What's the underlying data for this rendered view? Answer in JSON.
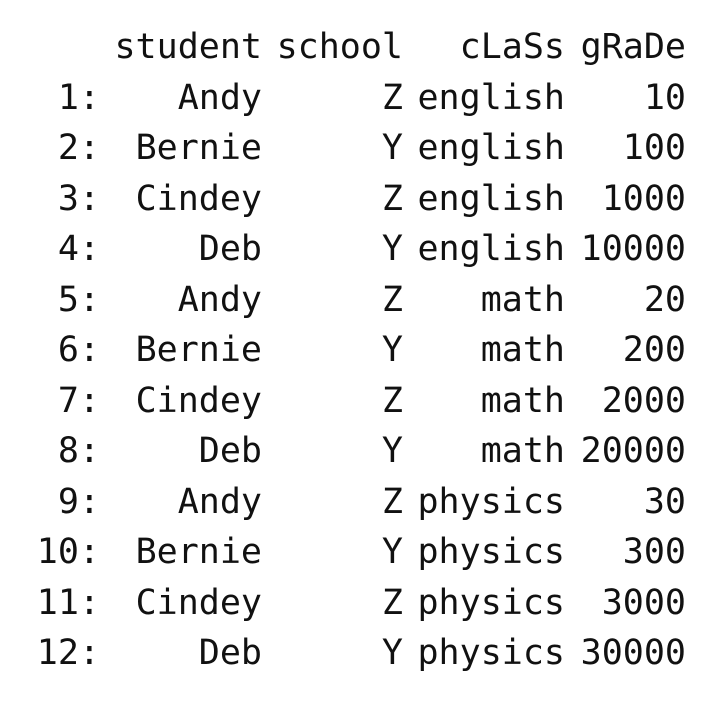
{
  "table": {
    "headers": {
      "index": "",
      "student": "student",
      "school": "school",
      "class": "cLaSs",
      "grade": "gRaDe"
    },
    "rows": [
      {
        "index": "1:",
        "student": "Andy",
        "school": "Z",
        "class": "english",
        "grade": "10"
      },
      {
        "index": "2:",
        "student": "Bernie",
        "school": "Y",
        "class": "english",
        "grade": "100"
      },
      {
        "index": "3:",
        "student": "Cindey",
        "school": "Z",
        "class": "english",
        "grade": "1000"
      },
      {
        "index": "4:",
        "student": "Deb",
        "school": "Y",
        "class": "english",
        "grade": "10000"
      },
      {
        "index": "5:",
        "student": "Andy",
        "school": "Z",
        "class": "math",
        "grade": "20"
      },
      {
        "index": "6:",
        "student": "Bernie",
        "school": "Y",
        "class": "math",
        "grade": "200"
      },
      {
        "index": "7:",
        "student": "Cindey",
        "school": "Z",
        "class": "math",
        "grade": "2000"
      },
      {
        "index": "8:",
        "student": "Deb",
        "school": "Y",
        "class": "math",
        "grade": "20000"
      },
      {
        "index": "9:",
        "student": "Andy",
        "school": "Z",
        "class": "physics",
        "grade": "30"
      },
      {
        "index": "10:",
        "student": "Bernie",
        "school": "Y",
        "class": "physics",
        "grade": "300"
      },
      {
        "index": "11:",
        "student": "Cindey",
        "school": "Z",
        "class": "physics",
        "grade": "3000"
      },
      {
        "index": "12:",
        "student": "Deb",
        "school": "Y",
        "class": "physics",
        "grade": "30000"
      }
    ]
  }
}
